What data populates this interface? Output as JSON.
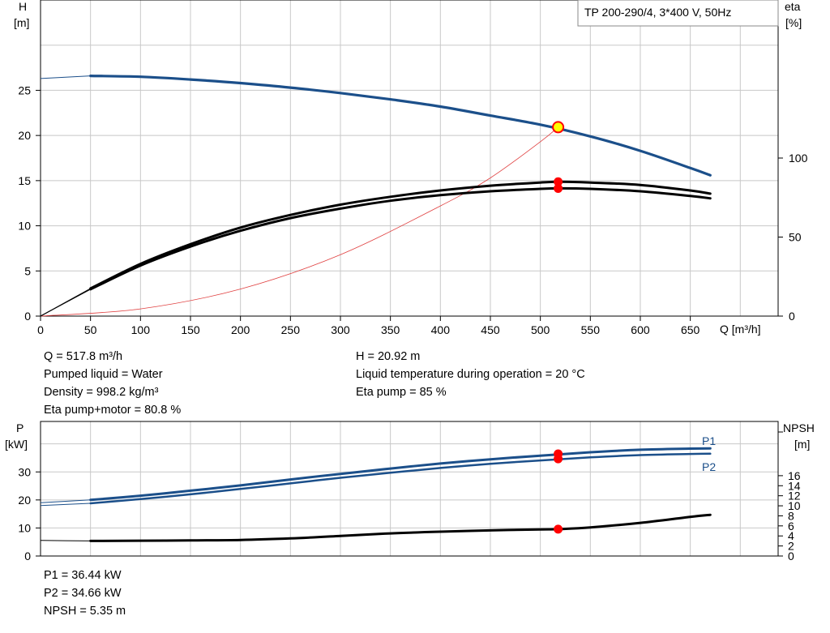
{
  "top_chart": {
    "title": "TP 200-290/4, 3*400 V, 50Hz",
    "left_axis_label": [
      "H",
      "[m]"
    ],
    "right_axis_label": [
      "eta",
      "[%]"
    ],
    "x_axis_label": "Q [m³/h]",
    "x_ticks": [
      "0",
      "50",
      "100",
      "150",
      "200",
      "250",
      "300",
      "350",
      "400",
      "450",
      "500",
      "550",
      "600",
      "650"
    ],
    "y_left_ticks": [
      "0",
      "5",
      "10",
      "15",
      "20",
      "25"
    ],
    "y_right_ticks": [
      "0",
      "50",
      "100"
    ]
  },
  "bottom_chart": {
    "left_axis_label": [
      "P",
      "[kW]"
    ],
    "right_axis_label": [
      "NPSH",
      "[m]"
    ],
    "y_left_ticks": [
      "0",
      "10",
      "20",
      "30"
    ],
    "y_right_ticks": [
      "0",
      "2",
      "4",
      "6",
      "8",
      "10",
      "12",
      "14",
      "16"
    ],
    "series_labels": {
      "p1": "P1",
      "p2": "P2"
    }
  },
  "info_mid": {
    "left": [
      "Q = 517.8 m³/h",
      "Pumped liquid = Water",
      "Density = 998.2 kg/m³",
      "Eta pump+motor = 80.8 %"
    ],
    "right": [
      "H = 20.92 m",
      "Liquid temperature during operation = 20 °C",
      "Eta pump = 85 %"
    ]
  },
  "info_bottom": [
    "P1 = 36.44 kW",
    "P2 = 34.66 kW",
    "NPSH = 5.35 m"
  ],
  "colors": {
    "head": "#1b4f8a",
    "power": "#1b4f8a",
    "efficiency": "#000000",
    "npsh": "#000000",
    "system": "#e04040",
    "marker": "#ff0000",
    "duty": "#ffff00",
    "grid": "#c8c8c8"
  },
  "chart_data": [
    {
      "type": "line",
      "title": "TP 200-290/4, 3*400 V, 50Hz",
      "xlabel": "Q [m³/h]",
      "ylabel": "H [m]",
      "y2label": "eta [%]",
      "xlim": [
        0,
        725
      ],
      "ylim": [
        0,
        35
      ],
      "y2lim": [
        0,
        200
      ],
      "grid": true,
      "duty_point": {
        "x": 517.8,
        "y": 20.92
      },
      "series": [
        {
          "axis": "left",
          "x": [
            0,
            50,
            100,
            150,
            200,
            250,
            300,
            350,
            400,
            450,
            500,
            550,
            600,
            650,
            670
          ],
          "y": [
            26.3,
            26.6,
            26.5,
            26.2,
            25.8,
            25.3,
            24.7,
            24.0,
            23.2,
            22.2,
            21.2,
            19.9,
            18.3,
            16.4,
            15.6
          ]
        },
        {
          "axis": "right",
          "x": [
            0,
            50,
            100,
            150,
            200,
            250,
            300,
            350,
            400,
            450,
            500,
            520,
            550,
            600,
            650,
            670
          ],
          "y": [
            0,
            17,
            32,
            44,
            54,
            62,
            68,
            73,
            76.5,
            79,
            80.5,
            80.8,
            80.5,
            79,
            76,
            74.5
          ]
        },
        {
          "axis": "right",
          "x": [
            0,
            50,
            100,
            150,
            200,
            250,
            300,
            350,
            400,
            450,
            500,
            520,
            550,
            600,
            650,
            670
          ],
          "y": [
            0,
            17.5,
            33,
            45.5,
            56,
            64,
            70.5,
            75.5,
            79.5,
            82.5,
            84.5,
            85,
            84.5,
            83,
            79.5,
            77.5
          ]
        },
        {
          "axis": "left",
          "x": [
            0,
            100,
            200,
            300,
            400,
            450,
            500,
            517.8
          ],
          "y": [
            0,
            0.8,
            3.0,
            6.8,
            12.2,
            15.3,
            19.3,
            20.92
          ]
        }
      ],
      "markers": [
        {
          "axis": "right",
          "x": 517.8,
          "y": 80.8
        },
        {
          "axis": "right",
          "x": 517.8,
          "y": 85
        }
      ]
    },
    {
      "type": "line",
      "ylabel": "P [kW]",
      "y2label": "NPSH [m]",
      "xlim": [
        0,
        725
      ],
      "ylim": [
        0,
        48
      ],
      "y2lim": [
        0,
        26.8
      ],
      "grid": true,
      "series": [
        {
          "name": "P1",
          "axis": "left",
          "x": [
            0,
            50,
            100,
            150,
            200,
            250,
            300,
            350,
            400,
            450,
            500,
            550,
            600,
            650,
            670
          ],
          "y": [
            19,
            20,
            21.5,
            23.3,
            25.2,
            27.3,
            29.3,
            31.2,
            33,
            34.5,
            35.8,
            37,
            37.9,
            38.3,
            38.4
          ]
        },
        {
          "name": "P2",
          "axis": "left",
          "x": [
            0,
            50,
            100,
            150,
            200,
            250,
            300,
            350,
            400,
            450,
            500,
            550,
            600,
            650,
            670
          ],
          "y": [
            18,
            18.8,
            20.3,
            22,
            23.9,
            25.9,
            27.9,
            29.7,
            31.4,
            32.9,
            34.1,
            35.2,
            36,
            36.4,
            36.5
          ]
        },
        {
          "axis": "right",
          "x": [
            0,
            50,
            100,
            150,
            200,
            250,
            300,
            350,
            400,
            450,
            500,
            517.8,
            550,
            600,
            650,
            670
          ],
          "y": [
            3.1,
            3.0,
            3.05,
            3.1,
            3.2,
            3.5,
            4.0,
            4.5,
            4.85,
            5.1,
            5.3,
            5.35,
            5.7,
            6.6,
            7.8,
            8.2
          ]
        }
      ],
      "markers": [
        {
          "axis": "left",
          "x": 517.8,
          "y": 36.44
        },
        {
          "axis": "left",
          "x": 517.8,
          "y": 34.66
        },
        {
          "axis": "right",
          "x": 517.8,
          "y": 5.35
        }
      ]
    }
  ]
}
